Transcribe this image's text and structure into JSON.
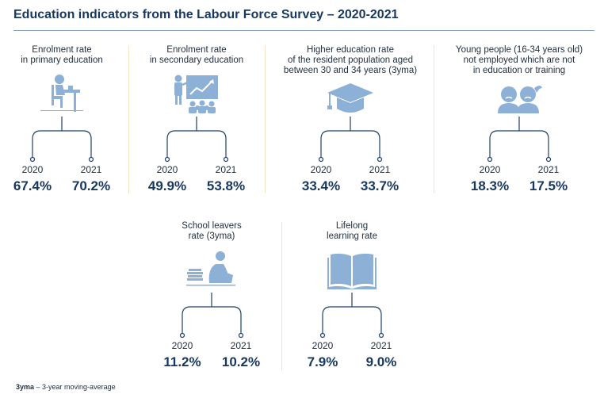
{
  "title": "Education indicators from the Labour Force Survey – 2020-2021",
  "indicators": [
    {
      "label": "Enrolment rate\nin primary education",
      "icon": "student-at-desk-icon",
      "year1": "2020",
      "value1": "67.4%",
      "year2": "2021",
      "value2": "70.2%"
    },
    {
      "label": "Enrolment rate\nin secondary education",
      "icon": "teacher-presentation-icon",
      "year1": "2020",
      "value1": "49.9%",
      "year2": "2021",
      "value2": "53.8%"
    },
    {
      "label": "Higher education rate\nof the resident population aged\nbetween 30 and 34 years (3yma)",
      "icon": "graduation-cap-icon",
      "year1": "2020",
      "value1": "33.4%",
      "year2": "2021",
      "value2": "33.7%"
    },
    {
      "label": "Young people (16-34 years old)\nnot employed which are not\nin education or training",
      "icon": "young-people-icon",
      "year1": "2020",
      "value1": "18.3%",
      "year2": "2021",
      "value2": "17.5%"
    },
    {
      "label": "School leavers\nrate (3yma)",
      "icon": "sitting-person-books-icon",
      "year1": "2020",
      "value1": "11.2%",
      "year2": "2021",
      "value2": "10.2%"
    },
    {
      "label": "Lifelong\nlearning rate",
      "icon": "open-book-icon",
      "year1": "2020",
      "value1": "7.9%",
      "year2": "2021",
      "value2": "9.0%"
    }
  ],
  "footnote": {
    "term": "3yma",
    "definition": " – 3-year moving-average"
  },
  "colors": {
    "icon": "#8cb0d6",
    "title": "#17375e",
    "line": "#1f3f66",
    "separator": "#f4e6c4"
  }
}
